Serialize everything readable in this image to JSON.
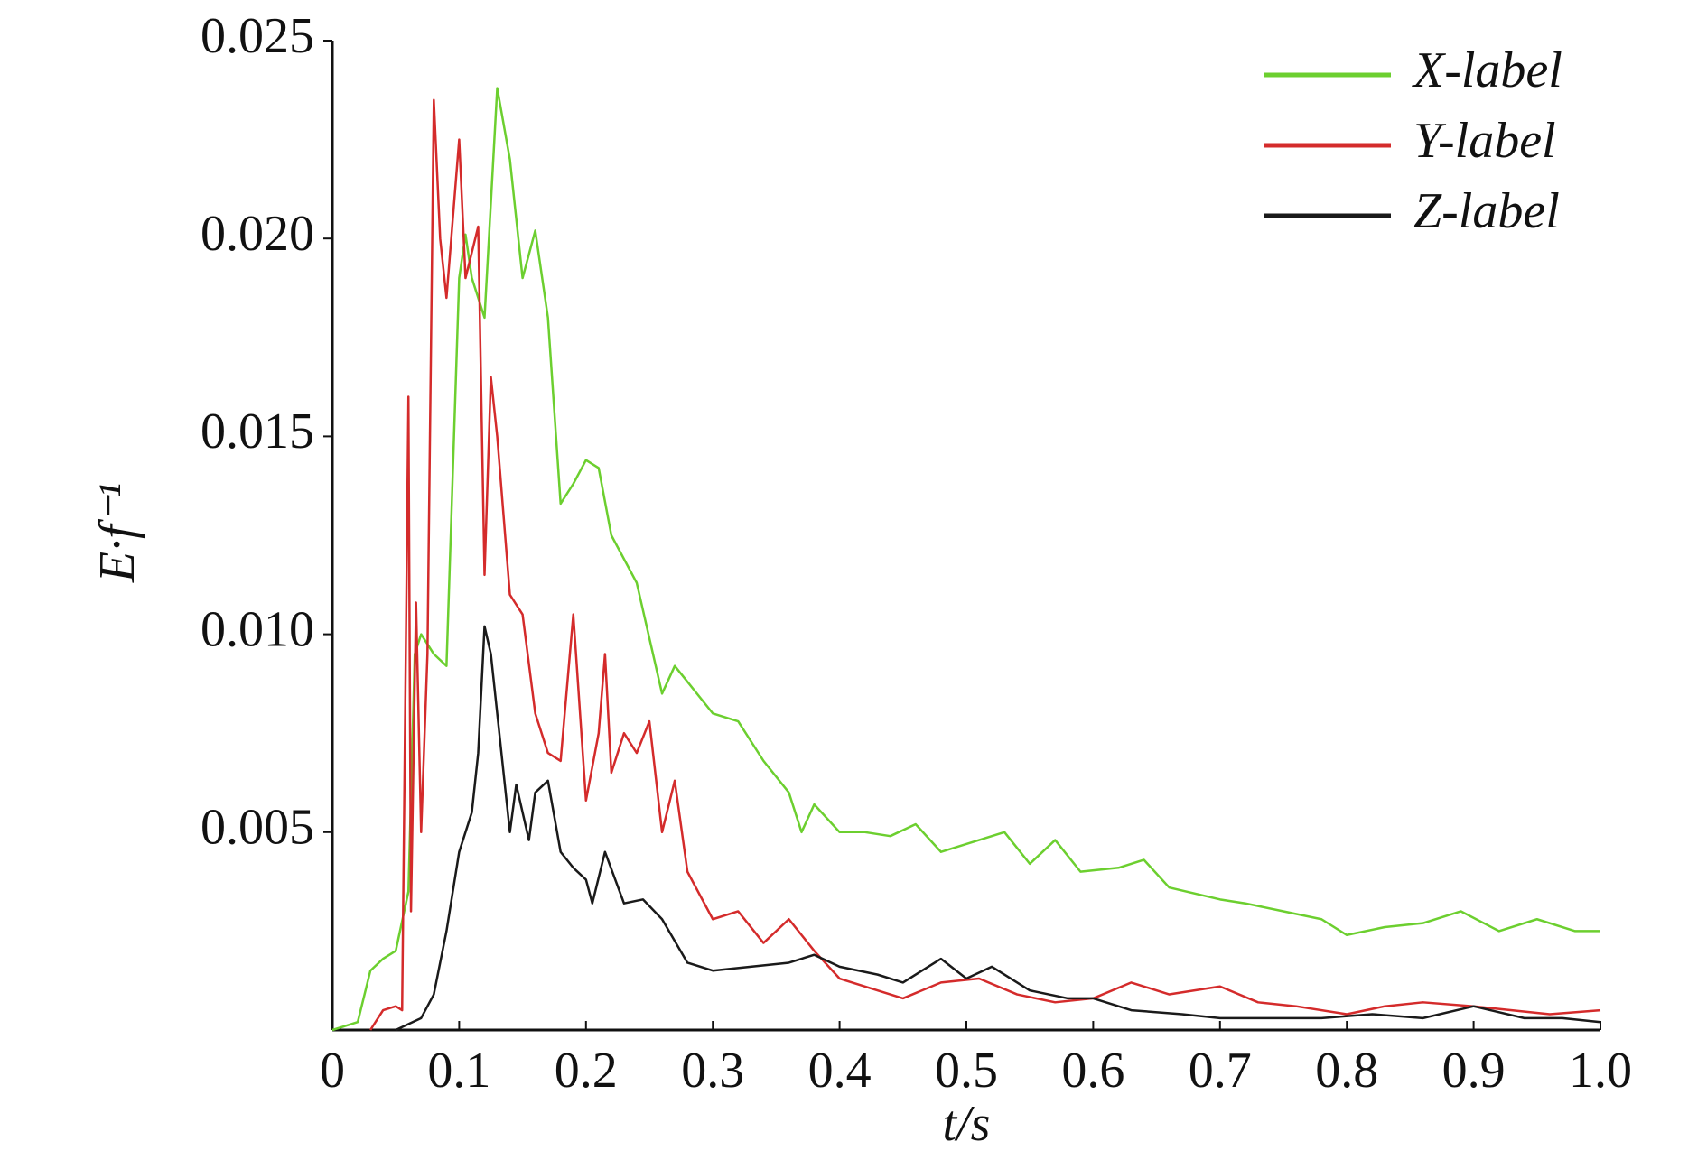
{
  "chart_data": {
    "type": "line",
    "xlabel": "t/s",
    "ylabel": "E·f⁻¹",
    "xlim": [
      0,
      1
    ],
    "ylim": [
      0,
      0.025
    ],
    "xticks": [
      0,
      0.1,
      0.2,
      0.3,
      0.4,
      0.5,
      0.6,
      0.7,
      0.8,
      0.9,
      {
        "value": 1,
        "label": "1.0"
      }
    ],
    "yticks": [
      0.005,
      {
        "value": 0.01,
        "label": "0.010"
      },
      0.015,
      {
        "value": 0.02,
        "label": "0.020"
      },
      0.025
    ],
    "legend": "upper-right",
    "series": [
      {
        "name": "X-label",
        "color": "#6ccf2f",
        "x": [
          0,
          0.02,
          0.03,
          0.04,
          0.05,
          0.06,
          0.065,
          0.07,
          0.08,
          0.09,
          0.1,
          0.105,
          0.11,
          0.12,
          0.13,
          0.14,
          0.15,
          0.16,
          0.17,
          0.18,
          0.19,
          0.2,
          0.21,
          0.22,
          0.24,
          0.26,
          0.27,
          0.28,
          0.3,
          0.32,
          0.34,
          0.36,
          0.37,
          0.38,
          0.4,
          0.42,
          0.44,
          0.46,
          0.48,
          0.5,
          0.53,
          0.55,
          0.57,
          0.59,
          0.62,
          0.64,
          0.66,
          0.7,
          0.72,
          0.75,
          0.78,
          0.8,
          0.83,
          0.86,
          0.89,
          0.92,
          0.95,
          0.98,
          1
        ],
        "values": [
          0,
          0.0002,
          0.0015,
          0.0018,
          0.002,
          0.0035,
          0.0095,
          0.01,
          0.0095,
          0.0092,
          0.019,
          0.0201,
          0.019,
          0.018,
          0.0238,
          0.022,
          0.019,
          0.0202,
          0.018,
          0.0133,
          0.0138,
          0.0144,
          0.0142,
          0.0125,
          0.0113,
          0.0085,
          0.0092,
          0.0088,
          0.008,
          0.0078,
          0.0068,
          0.006,
          0.005,
          0.0057,
          0.005,
          0.005,
          0.0049,
          0.0052,
          0.0045,
          0.0047,
          0.005,
          0.0042,
          0.0048,
          0.004,
          0.0041,
          0.0043,
          0.0036,
          0.0033,
          0.0032,
          0.003,
          0.0028,
          0.0024,
          0.0026,
          0.0027,
          0.003,
          0.0025,
          0.0028,
          0.0025,
          0.0025
        ]
      },
      {
        "name": "Y-label",
        "color": "#d42b2b",
        "x": [
          0.03,
          0.04,
          0.05,
          0.055,
          0.06,
          0.062,
          0.066,
          0.07,
          0.075,
          0.08,
          0.085,
          0.09,
          0.1,
          0.105,
          0.115,
          0.12,
          0.125,
          0.13,
          0.14,
          0.15,
          0.16,
          0.17,
          0.18,
          0.19,
          0.2,
          0.21,
          0.215,
          0.22,
          0.23,
          0.24,
          0.25,
          0.26,
          0.27,
          0.28,
          0.3,
          0.32,
          0.34,
          0.36,
          0.38,
          0.4,
          0.42,
          0.45,
          0.48,
          0.51,
          0.54,
          0.57,
          0.6,
          0.63,
          0.66,
          0.7,
          0.73,
          0.76,
          0.8,
          0.83,
          0.86,
          0.9,
          0.93,
          0.96,
          1
        ],
        "values": [
          0,
          0.0005,
          0.0006,
          0.0005,
          0.016,
          0.003,
          0.0108,
          0.005,
          0.0095,
          0.0235,
          0.02,
          0.0185,
          0.0225,
          0.019,
          0.0203,
          0.0115,
          0.0165,
          0.015,
          0.011,
          0.0105,
          0.008,
          0.007,
          0.0068,
          0.0105,
          0.0058,
          0.0075,
          0.0095,
          0.0065,
          0.0075,
          0.007,
          0.0078,
          0.005,
          0.0063,
          0.004,
          0.0028,
          0.003,
          0.0022,
          0.0028,
          0.002,
          0.0013,
          0.0011,
          0.0008,
          0.0012,
          0.0013,
          0.0009,
          0.0007,
          0.0008,
          0.0012,
          0.0009,
          0.0011,
          0.0007,
          0.0006,
          0.0004,
          0.0006,
          0.0007,
          0.0006,
          0.0005,
          0.0004,
          0.0005
        ]
      },
      {
        "name": "Z-label",
        "color": "#1a1a1a",
        "x": [
          0.05,
          0.07,
          0.08,
          0.09,
          0.1,
          0.11,
          0.115,
          0.12,
          0.125,
          0.13,
          0.14,
          0.145,
          0.155,
          0.16,
          0.17,
          0.18,
          0.19,
          0.2,
          0.205,
          0.215,
          0.23,
          0.245,
          0.26,
          0.28,
          0.3,
          0.33,
          0.36,
          0.38,
          0.4,
          0.43,
          0.45,
          0.48,
          0.5,
          0.52,
          0.55,
          0.58,
          0.6,
          0.63,
          0.67,
          0.7,
          0.74,
          0.78,
          0.82,
          0.86,
          0.9,
          0.94,
          0.97,
          1
        ],
        "values": [
          0,
          0.0003,
          0.0009,
          0.0025,
          0.0045,
          0.0055,
          0.007,
          0.0102,
          0.0095,
          0.008,
          0.005,
          0.0062,
          0.0048,
          0.006,
          0.0063,
          0.0045,
          0.0041,
          0.0038,
          0.0032,
          0.0045,
          0.0032,
          0.0033,
          0.0028,
          0.0017,
          0.0015,
          0.0016,
          0.0017,
          0.0019,
          0.0016,
          0.0014,
          0.0012,
          0.0018,
          0.0013,
          0.0016,
          0.001,
          0.0008,
          0.0008,
          0.0005,
          0.0004,
          0.0003,
          0.0003,
          0.0003,
          0.0004,
          0.0003,
          0.0006,
          0.0003,
          0.0003,
          0.0002
        ]
      }
    ]
  }
}
